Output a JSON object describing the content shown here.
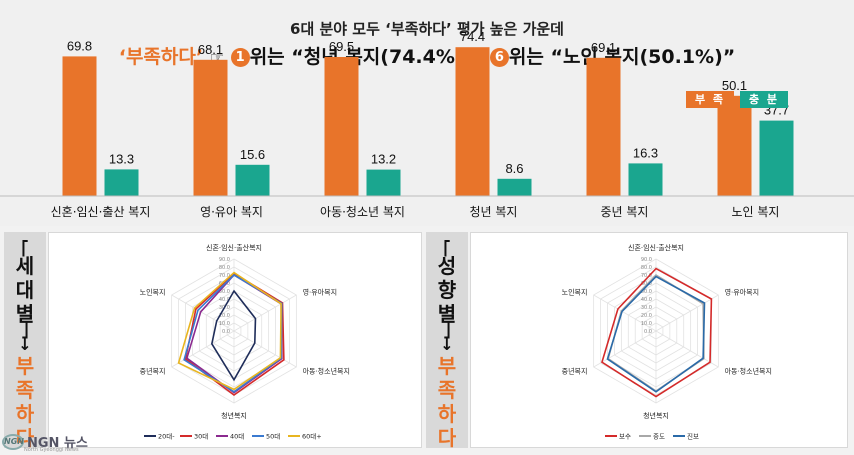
{
  "header": {
    "line1": "6대 분야 모두 ‘부족하다’ 평가 높은 가운데",
    "line2_prefix": "‘부족하다’",
    "line2_hand": "☞",
    "rank1_num": "1",
    "rank1_text": "위는 “청년 복지(74.4%)”, ",
    "rank6_num": "6",
    "rank6_text": "위는 “노인 복지(50.1%)”"
  },
  "colors": {
    "insufficient": "#e8742a",
    "sufficient": "#1aa68f",
    "accent": "#e8742a"
  },
  "legend_top": {
    "insufficient": "부 족",
    "sufficient": "충 분"
  },
  "side_labels": {
    "left_top": [
      "세",
      "대",
      "별"
    ],
    "right_top": [
      "성",
      "향",
      "별"
    ],
    "arrow": "↓",
    "bottom": [
      "부",
      "족",
      "하",
      "다"
    ]
  },
  "logo": {
    "brand": "NGN 뉴스",
    "sub": "North Gyeonggi News",
    "mark": "NGN"
  },
  "chart_data": [
    {
      "type": "bar",
      "categories": [
        "신혼·임신·출산 복지",
        "영·유아 복지",
        "아동·청소년 복지",
        "청년 복지",
        "중년 복지",
        "노인 복지"
      ],
      "series": [
        {
          "name": "부 족",
          "values": [
            69.8,
            68.1,
            69.5,
            74.4,
            69.1,
            50.1
          ]
        },
        {
          "name": "충 분",
          "values": [
            13.3,
            15.6,
            13.2,
            8.6,
            16.3,
            37.7
          ]
        }
      ],
      "legend": "top-right"
    },
    {
      "type": "radar",
      "axes": [
        "신혼·임신·출산복지",
        "영·유아복지",
        "아동·청소년복지",
        "청년복지",
        "중년복지",
        "노인복지"
      ],
      "ticks": [
        "0.0",
        "10.0",
        "20.0",
        "30.0",
        "40.0",
        "50.0",
        "60.0",
        "70.0",
        "80.0",
        "90.0"
      ],
      "max": 90,
      "series": [
        {
          "name": "20대-",
          "color": "#1f2d5a",
          "values": [
            50,
            31,
            30,
            61,
            32,
            25
          ]
        },
        {
          "name": "30대",
          "color": "#d42a2a",
          "values": [
            72,
            70,
            72,
            80,
            70,
            55
          ]
        },
        {
          "name": "40대",
          "color": "#8b2a8f",
          "values": [
            70,
            68,
            69,
            77,
            68,
            48
          ]
        },
        {
          "name": "50대",
          "color": "#3a7ad0",
          "values": [
            70,
            69,
            68,
            76,
            72,
            52
          ]
        },
        {
          "name": "60대+",
          "color": "#e8b520",
          "values": [
            73,
            68,
            67,
            73,
            80,
            57
          ]
        }
      ],
      "legend": "bottom"
    },
    {
      "type": "radar",
      "axes": [
        "신혼·임신·출산복지",
        "영·유아복지",
        "아동·청소년복지",
        "청년복지",
        "중년복지",
        "노인복지"
      ],
      "ticks": [
        "0.0",
        "10.0",
        "20.0",
        "30.0",
        "40.0",
        "50.0",
        "60.0",
        "70.0",
        "80.0",
        "90.0"
      ],
      "max": 90,
      "series": [
        {
          "name": "보수",
          "color": "#d42a2a",
          "values": [
            78,
            80,
            78,
            82,
            78,
            55
          ]
        },
        {
          "name": "중도",
          "color": "#a8a8a8",
          "values": [
            70,
            68,
            69,
            75,
            69,
            50
          ]
        },
        {
          "name": "진보",
          "color": "#2a6aa8",
          "values": [
            68,
            70,
            68,
            76,
            70,
            49
          ]
        }
      ],
      "legend": "bottom"
    }
  ]
}
